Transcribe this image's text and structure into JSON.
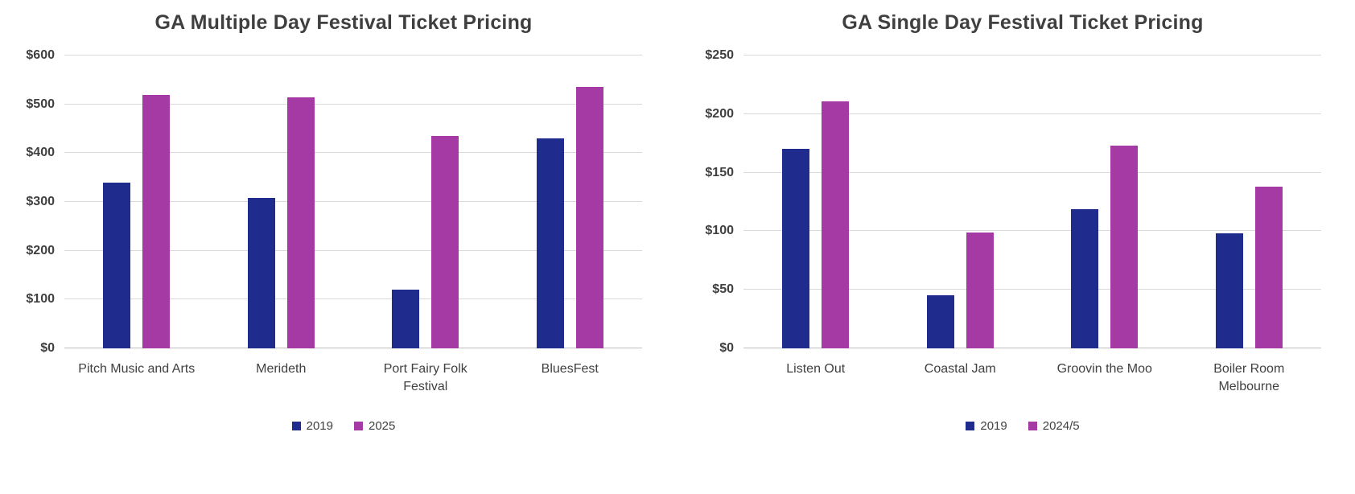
{
  "colors": {
    "series_navy": "#1f2c8e",
    "series_purple": "#a53aa5",
    "gridline": "#d9d9d9",
    "baseline": "#bfbfbf",
    "axis_text": "#404040",
    "title_text": "#3f3f3f",
    "background": "#ffffff"
  },
  "chart_data": [
    {
      "type": "bar",
      "title": "GA Multiple Day Festival Ticket Pricing",
      "categories": [
        "Pitch Music and Arts",
        "Merideth",
        "Port Fairy Folk Festival",
        "BluesFest"
      ],
      "series": [
        {
          "name": "2019",
          "color": "#1f2c8e",
          "values": [
            340,
            308,
            120,
            430
          ]
        },
        {
          "name": "2025",
          "color": "#a53aa5",
          "values": [
            520,
            515,
            435,
            535
          ]
        }
      ],
      "xlabel": "",
      "ylabel": "",
      "ylim": [
        0,
        600
      ],
      "ytick_step": 100,
      "ytick_prefix": "$",
      "grid": true,
      "legend_position": "bottom"
    },
    {
      "type": "bar",
      "title": "GA Single Day Festival Ticket Pricing",
      "categories": [
        "Listen Out",
        "Coastal Jam",
        "Groovin the Moo",
        "Boiler Room Melbourne"
      ],
      "series": [
        {
          "name": "2019",
          "color": "#1f2c8e",
          "values": [
            170,
            45,
            119,
            98
          ]
        },
        {
          "name": "2024/5",
          "color": "#a53aa5",
          "values": [
            211,
            99,
            173,
            138
          ]
        }
      ],
      "xlabel": "",
      "ylabel": "",
      "ylim": [
        0,
        250
      ],
      "ytick_step": 50,
      "ytick_prefix": "$",
      "grid": true,
      "legend_position": "bottom"
    }
  ]
}
